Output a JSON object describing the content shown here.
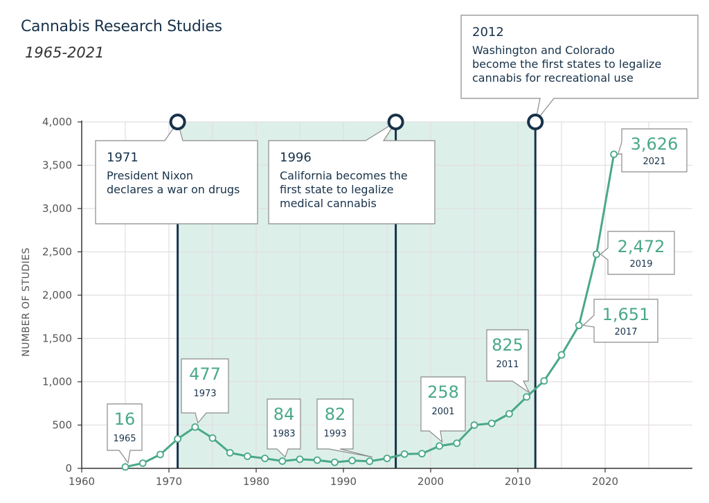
{
  "chart_data": {
    "type": "line",
    "title": "Cannabis Research Studies",
    "subtitle": "1965-2021",
    "ylabel": "NUMBER OF STUDIES",
    "xlabel": "",
    "xlim": [
      1960,
      2030
    ],
    "ylim": [
      0,
      4000
    ],
    "x_ticks": [
      1960,
      1970,
      1980,
      1990,
      2000,
      2010,
      2020
    ],
    "y_ticks": [
      0,
      500,
      1000,
      1500,
      2000,
      2500,
      3000,
      3500,
      4000
    ],
    "y_tick_labels": [
      "0",
      "500",
      "1,000",
      "1,500",
      "2,000",
      "2,500",
      "3,000",
      "3,500",
      "4,000"
    ],
    "shaded_range": [
      1971,
      2012
    ],
    "series": [
      {
        "name": "Number of studies",
        "color": "#4aa888",
        "x": [
          1965,
          1967,
          1969,
          1971,
          1973,
          1975,
          1977,
          1979,
          1981,
          1983,
          1985,
          1987,
          1989,
          1991,
          1993,
          1995,
          1997,
          1999,
          2001,
          2003,
          2005,
          2007,
          2009,
          2011,
          2013,
          2015,
          2017,
          2019,
          2021
        ],
        "y": [
          16,
          60,
          160,
          340,
          477,
          350,
          180,
          140,
          115,
          84,
          105,
          95,
          70,
          90,
          82,
          115,
          165,
          170,
          258,
          290,
          500,
          520,
          630,
          825,
          1010,
          1310,
          1651,
          2472,
          3626
        ]
      }
    ],
    "events": [
      {
        "year": 1971,
        "label_year": "1971",
        "lines": [
          "President Nixon",
          "declares a war on drugs"
        ]
      },
      {
        "year": 1996,
        "label_year": "1996",
        "lines": [
          "California becomes the",
          "first state to legalize",
          "medical cannabis"
        ]
      },
      {
        "year": 2012,
        "label_year": "2012",
        "lines": [
          "Washington and Colorado",
          "become the first states to legalize",
          "cannabis for recreational use"
        ]
      }
    ],
    "annotations": [
      {
        "x": 1965,
        "y": 16,
        "value": "16",
        "year": "1965"
      },
      {
        "x": 1973,
        "y": 477,
        "value": "477",
        "year": "1973"
      },
      {
        "x": 1983,
        "y": 84,
        "value": "84",
        "year": "1983"
      },
      {
        "x": 1993,
        "y": 82,
        "value": "82",
        "year": "1993"
      },
      {
        "x": 2001,
        "y": 258,
        "value": "258",
        "year": "2001"
      },
      {
        "x": 2011,
        "y": 825,
        "value": "825",
        "year": "2011"
      },
      {
        "x": 2017,
        "y": 1651,
        "value": "1,651",
        "year": "2017"
      },
      {
        "x": 2019,
        "y": 2472,
        "value": "2,472",
        "year": "2019"
      },
      {
        "x": 2021,
        "y": 3626,
        "value": "3,626",
        "year": "2021"
      }
    ],
    "colors": {
      "line": "#4aa888",
      "shade": "#dcf0e9",
      "event_line": "#17324a",
      "grid": "#e2dde3",
      "axis": "#333333"
    }
  }
}
